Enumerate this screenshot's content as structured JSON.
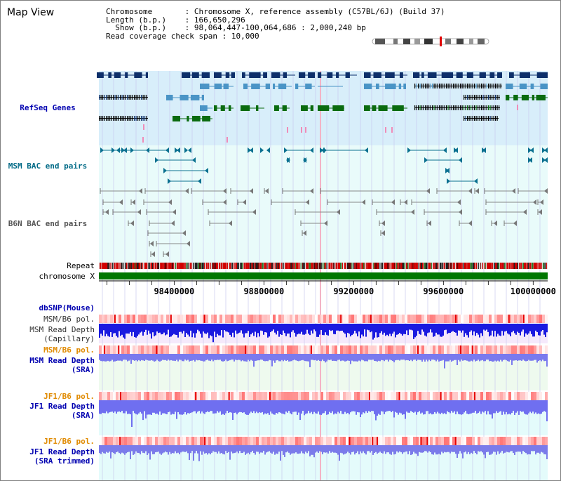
{
  "title": "Map View",
  "info": {
    "chromosome_key": "Chromosome",
    "chromosome_val": "Chromosome X, reference assembly (C57BL/6J) (Build 37)",
    "length_key": "Length (b.p.)",
    "length_val": "166,650,296",
    "show_key": "Show (b.p.)",
    "show_val": "98,064,447-100,064,686 : 2,000,240 bp",
    "coverage_key": "Read coverage check span",
    "coverage_val": "10,000"
  },
  "tracks": {
    "refseq": "RefSeq Genes",
    "msm_bac": "MSM BAC end pairs",
    "b6n_bac": "B6N BAC end pairs",
    "repeat": "Repeat",
    "chromosome": "chromosome X",
    "dbsnp": "dbSNP(Mouse)",
    "msm_b6_pol_1": "MSM/B6 pol.",
    "msm_depth_cap_1": "MSM Read Depth",
    "msm_depth_cap_2": "(Capillary)",
    "msm_b6_pol_2": "MSM/B6 pol.",
    "msm_depth_sra_1": "MSM Read Depth",
    "msm_depth_sra_2": "(SRA)",
    "jf1_b6_pol_1": "JF1/B6 pol.",
    "jf1_depth_sra_1": "JF1 Read Depth",
    "jf1_depth_sra_2": "(SRA)",
    "jf1_b6_pol_2": "JF1/B6 pol.",
    "jf1_depth_trim_1": "JF1 Read Depth",
    "jf1_depth_trim_2": "(SRA trimmed)"
  },
  "axis": {
    "ticks": [
      "98400000",
      "98800000",
      "99200000",
      "99600000",
      "100000000"
    ],
    "range": [
      98064447,
      100064686
    ]
  },
  "colors": {
    "navy": "#0d2f6a",
    "teal": "#4a94c6",
    "green": "#0a6b0f",
    "refseq_bg": "#d8eefa",
    "bac_bg": "#e6fbf9",
    "grid": "#b9b9e6",
    "label_blue": "#0000b0",
    "label_teal": "#006a86",
    "label_gray": "#555555",
    "label_orange": "#e08a00",
    "chrom_green": "#007700"
  }
}
